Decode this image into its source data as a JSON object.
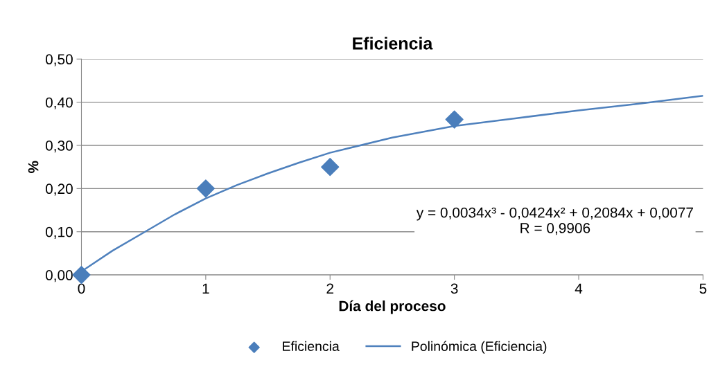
{
  "chart_data": {
    "type": "scatter",
    "title": "Eficiencia",
    "xlabel": "Día del proceso",
    "ylabel": "%",
    "xlim": [
      0,
      5
    ],
    "xticks": [
      0,
      1,
      2,
      3,
      4,
      5
    ],
    "ylim": [
      0,
      0.5
    ],
    "yticks": [
      {
        "value": 0,
        "label": "0,00"
      },
      {
        "value": 0.1,
        "label": "0,10"
      },
      {
        "value": 0.2,
        "label": "0,20"
      },
      {
        "value": 0.3,
        "label": "0,30"
      },
      {
        "value": 0.4,
        "label": "0,40"
      },
      {
        "value": 0.5,
        "label": "0,50"
      }
    ],
    "grid": "y",
    "legend": "bottom",
    "series": [
      {
        "name": "Eficiencia",
        "marker": "diamond",
        "color": "#4a7ebb",
        "x": [
          0,
          1,
          2,
          3
        ],
        "values": [
          0.0,
          0.2,
          0.25,
          0.36
        ]
      },
      {
        "name": "Polinómica (Eficiencia)",
        "type": "line",
        "color": "#4f81bd",
        "line_style": "solid",
        "marker": "none",
        "x": [
          0,
          0.25,
          0.5,
          0.75,
          1,
          1.25,
          1.5,
          1.75,
          2,
          2.5,
          3,
          3.5,
          4,
          4.5,
          5
        ],
        "values": [
          0.008,
          0.056,
          0.098,
          0.14,
          0.177,
          0.208,
          0.235,
          0.26,
          0.283,
          0.318,
          0.345,
          0.363,
          0.381,
          0.397,
          0.415
        ]
      }
    ],
    "annotations": [
      "y = 0,0034x³ - 0,0424x² + 0,2084x + 0,0077\nR = 0,9906"
    ]
  }
}
